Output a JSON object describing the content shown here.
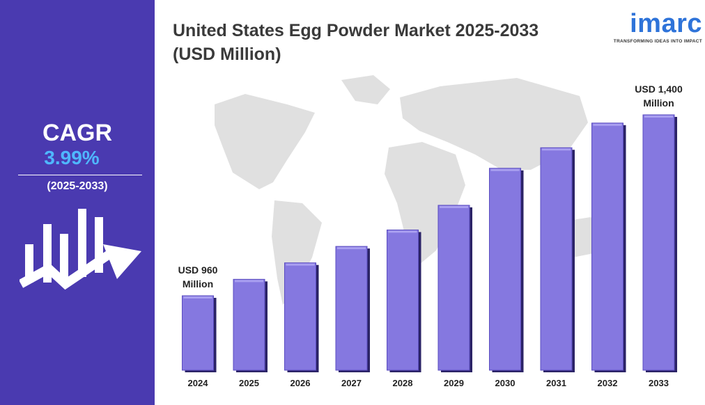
{
  "sidebar": {
    "cagr_label": "CAGR",
    "cagr_value": "3.99%",
    "period": "(2025-2033)",
    "bg_color": "#4a3ab0",
    "accent_color": "#4fb7ff",
    "icon": "growth-chart-arrow-icon"
  },
  "brand": {
    "logo_text": "imarc",
    "tagline": "TRANSFORMING IDEAS INTO IMPACT",
    "color": "#2e73d9"
  },
  "chart_data": {
    "type": "bar",
    "title": "United States Egg Powder Market 2025-2033 (USD Million)",
    "categories": [
      "2024",
      "2025",
      "2026",
      "2027",
      "2028",
      "2029",
      "2030",
      "2031",
      "2032",
      "2033"
    ],
    "values": [
      960,
      1000,
      1040,
      1080,
      1120,
      1180,
      1270,
      1320,
      1380,
      1400
    ],
    "annotations": [
      {
        "category": "2024",
        "lines": [
          "USD 960",
          "Million"
        ]
      },
      {
        "category": "2033",
        "lines": [
          "USD 1,400",
          "Million"
        ]
      }
    ],
    "xlabel": "",
    "ylabel": "",
    "bar_color": "#8578e0",
    "grid": false,
    "background": "world-map"
  }
}
